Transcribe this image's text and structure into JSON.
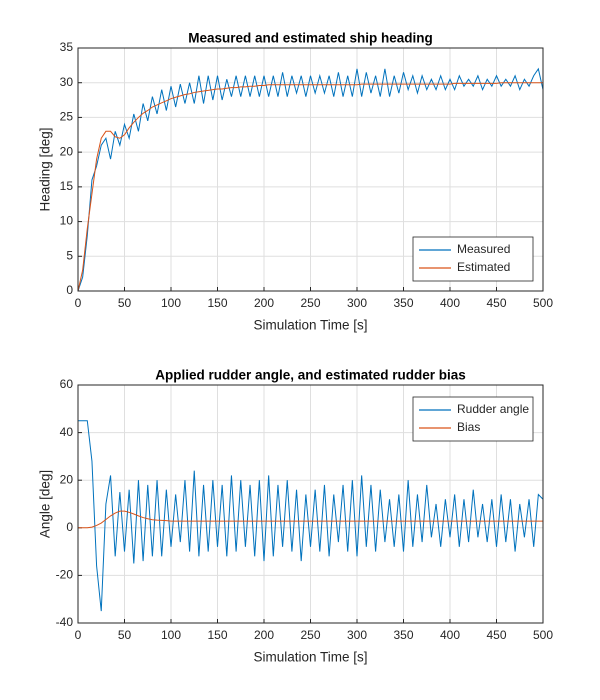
{
  "chart_data": [
    {
      "type": "line",
      "title": "Measured and estimated ship heading",
      "xlabel": "Simulation Time [s]",
      "ylabel": "Heading [deg]",
      "x": [
        0,
        5,
        10,
        15,
        20,
        25,
        30,
        35,
        40,
        45,
        50,
        55,
        60,
        65,
        70,
        75,
        80,
        85,
        90,
        95,
        100,
        105,
        110,
        115,
        120,
        125,
        130,
        135,
        140,
        145,
        150,
        155,
        160,
        165,
        170,
        175,
        180,
        185,
        190,
        195,
        200,
        205,
        210,
        215,
        220,
        225,
        230,
        235,
        240,
        245,
        250,
        255,
        260,
        265,
        270,
        275,
        280,
        285,
        290,
        295,
        300,
        305,
        310,
        315,
        320,
        325,
        330,
        335,
        340,
        345,
        350,
        355,
        360,
        365,
        370,
        375,
        380,
        385,
        390,
        395,
        400,
        405,
        410,
        415,
        420,
        425,
        430,
        435,
        440,
        445,
        450,
        455,
        460,
        465,
        470,
        475,
        480,
        485,
        490,
        495,
        500
      ],
      "series": [
        {
          "name": "Measured",
          "color": "#0072BD",
          "values": [
            0,
            2,
            8,
            16,
            18,
            21,
            22,
            19,
            23,
            21,
            24,
            22,
            25.5,
            23,
            27,
            24.5,
            28,
            25.5,
            29,
            26,
            29.5,
            26.5,
            29.8,
            27,
            30,
            27,
            31,
            27,
            31,
            27.5,
            31,
            27.5,
            30.5,
            28,
            31,
            28,
            31,
            28,
            31,
            28,
            31,
            28,
            31,
            28,
            31.5,
            28,
            31,
            28.5,
            31,
            28,
            31,
            28.5,
            31,
            28.5,
            31,
            28,
            31.5,
            28,
            31,
            28,
            32,
            28,
            31.5,
            28.5,
            31,
            28,
            32,
            28,
            31,
            28.5,
            31.5,
            29,
            31,
            28.5,
            31,
            29,
            30.5,
            29,
            31,
            29,
            30.5,
            29,
            31,
            29.5,
            30.5,
            29.5,
            31,
            29,
            30.5,
            29.5,
            31,
            29.5,
            30.5,
            29.5,
            31,
            29,
            30.5,
            29.5,
            31,
            32,
            29
          ]
        },
        {
          "name": "Estimated",
          "color": "#D95319",
          "values": [
            0,
            3,
            9,
            14,
            19,
            22,
            23,
            23,
            22.2,
            22,
            22.5,
            23.5,
            24.3,
            25,
            25.6,
            26,
            26.5,
            26.8,
            27.1,
            27.4,
            27.7,
            27.9,
            28.1,
            28.3,
            28.4,
            28.6,
            28.7,
            28.8,
            28.9,
            29,
            29.1,
            29.1,
            29.2,
            29.3,
            29.3,
            29.4,
            29.4,
            29.5,
            29.5,
            29.6,
            29.6,
            29.7,
            29.7,
            29.7,
            29.7,
            29.7,
            29.7,
            29.7,
            29.7,
            29.7,
            29.7,
            29.7,
            29.7,
            29.7,
            29.7,
            29.7,
            29.7,
            29.7,
            29.7,
            29.7,
            29.7,
            29.8,
            29.8,
            29.8,
            29.8,
            29.8,
            29.8,
            29.8,
            29.8,
            29.8,
            29.8,
            29.8,
            29.8,
            29.8,
            29.8,
            29.8,
            29.8,
            29.8,
            29.8,
            29.8,
            29.8,
            29.9,
            29.9,
            29.9,
            29.9,
            29.9,
            29.9,
            29.9,
            29.9,
            29.9,
            29.9,
            30,
            30,
            30,
            30,
            30,
            30,
            30,
            30,
            30,
            30
          ]
        }
      ],
      "xlim": [
        0,
        500
      ],
      "ylim": [
        0,
        35
      ],
      "xticks": [
        0,
        50,
        100,
        150,
        200,
        250,
        300,
        350,
        400,
        450,
        500
      ],
      "yticks": [
        0,
        5,
        10,
        15,
        20,
        25,
        30,
        35
      ],
      "grid": true,
      "legend": "southeast"
    },
    {
      "type": "line",
      "title": "Applied rudder angle, and estimated rudder bias",
      "xlabel": "Simulation Time [s]",
      "ylabel": "Angle [deg]",
      "x": [
        0,
        5,
        10,
        15,
        20,
        25,
        30,
        35,
        40,
        45,
        50,
        55,
        60,
        65,
        70,
        75,
        80,
        85,
        90,
        95,
        100,
        105,
        110,
        115,
        120,
        125,
        130,
        135,
        140,
        145,
        150,
        155,
        160,
        165,
        170,
        175,
        180,
        185,
        190,
        195,
        200,
        205,
        210,
        215,
        220,
        225,
        230,
        235,
        240,
        245,
        250,
        255,
        260,
        265,
        270,
        275,
        280,
        285,
        290,
        295,
        300,
        305,
        310,
        315,
        320,
        325,
        330,
        335,
        340,
        345,
        350,
        355,
        360,
        365,
        370,
        375,
        380,
        385,
        390,
        395,
        400,
        405,
        410,
        415,
        420,
        425,
        430,
        435,
        440,
        445,
        450,
        455,
        460,
        465,
        470,
        475,
        480,
        485,
        490,
        495,
        500
      ],
      "series": [
        {
          "name": "Rudder angle",
          "color": "#0072BD",
          "values": [
            45,
            45,
            45,
            28,
            -16,
            -35,
            10,
            22,
            -12,
            15,
            -10,
            16,
            -15,
            20,
            -14,
            18,
            -12,
            20,
            -12,
            16,
            -8,
            14,
            -6,
            20,
            -10,
            24,
            -12,
            18,
            -10,
            20,
            -8,
            18,
            -12,
            22,
            -10,
            20,
            -8,
            18,
            -12,
            20,
            -14,
            22,
            -12,
            18,
            -8,
            20,
            -10,
            16,
            -14,
            14,
            -8,
            16,
            -10,
            18,
            -12,
            14,
            -6,
            18,
            -10,
            20,
            -12,
            22,
            -8,
            18,
            -10,
            16,
            -6,
            12,
            -8,
            14,
            -10,
            20,
            -8,
            14,
            -6,
            18,
            -4,
            10,
            -8,
            12,
            -4,
            14,
            -8,
            12,
            -6,
            16,
            -4,
            10,
            -6,
            12,
            -8,
            14,
            -6,
            12,
            -10,
            10,
            -4,
            12,
            -8,
            14,
            12
          ]
        },
        {
          "name": "Bias",
          "color": "#D95319",
          "values": [
            0,
            0,
            0,
            0.3,
            1,
            2,
            3.5,
            5,
            6.2,
            7,
            7,
            6.5,
            5.8,
            5,
            4.3,
            3.8,
            3.4,
            3.2,
            3.1,
            3,
            2.8,
            2.8,
            2.8,
            2.8,
            2.8,
            2.8,
            2.8,
            2.8,
            2.8,
            2.8,
            2.8,
            2.8,
            2.8,
            2.8,
            2.8,
            2.8,
            2.8,
            2.8,
            2.8,
            2.8,
            2.8,
            2.8,
            2.8,
            2.8,
            2.8,
            2.8,
            2.8,
            2.8,
            2.8,
            2.8,
            2.8,
            2.8,
            2.8,
            2.8,
            2.8,
            2.8,
            2.8,
            2.8,
            2.8,
            2.8,
            2.8,
            2.8,
            2.8,
            2.8,
            2.8,
            2.8,
            2.8,
            2.8,
            2.8,
            2.8,
            2.8,
            2.8,
            2.8,
            2.8,
            2.8,
            2.8,
            2.8,
            2.8,
            2.8,
            2.8,
            2.8,
            2.8,
            2.8,
            2.8,
            2.8,
            2.8,
            2.8,
            2.8,
            2.8,
            2.8,
            2.8,
            2.8,
            2.8,
            2.8,
            2.8,
            2.8,
            2.8,
            2.8,
            2.8,
            2.8,
            2.8
          ]
        }
      ],
      "xlim": [
        0,
        500
      ],
      "ylim": [
        -40,
        60
      ],
      "xticks": [
        0,
        50,
        100,
        150,
        200,
        250,
        300,
        350,
        400,
        450,
        500
      ],
      "yticks": [
        -40,
        -20,
        0,
        20,
        40,
        60
      ],
      "grid": true,
      "legend": "northeast"
    }
  ]
}
